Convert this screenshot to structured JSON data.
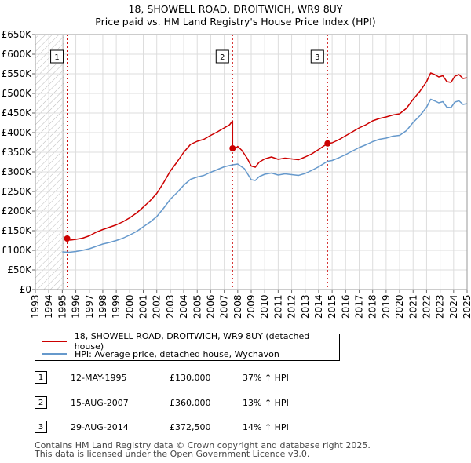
{
  "title": "18, SHOWELL ROAD, DROITWICH, WR9 8UY",
  "subtitle": "Price paid vs. HM Land Registry's House Price Index (HPI)",
  "colors": {
    "property": "#cc0000",
    "hpi": "#6699cc",
    "marker_line": "#cc0000",
    "hatch": "#bbbbbb",
    "grid": "#dddddd"
  },
  "chart_data": {
    "type": "line",
    "title": "18, SHOWELL ROAD, DROITWICH, WR9 8UY",
    "subtitle": "Price paid vs. HM Land Registry's House Price Index (HPI)",
    "xlabel": "",
    "ylabel": "",
    "xlim": [
      1993,
      2025
    ],
    "ylim": [
      0,
      650000
    ],
    "grid": true,
    "x_ticks": [
      1993,
      1994,
      1995,
      1996,
      1997,
      1998,
      1999,
      2000,
      2001,
      2002,
      2003,
      2004,
      2005,
      2006,
      2007,
      2008,
      2009,
      2010,
      2011,
      2012,
      2013,
      2014,
      2015,
      2016,
      2017,
      2018,
      2019,
      2020,
      2021,
      2022,
      2023,
      2024,
      2025
    ],
    "y_ticks": [
      0,
      50000,
      100000,
      150000,
      200000,
      250000,
      300000,
      350000,
      400000,
      450000,
      500000,
      550000,
      600000,
      650000
    ],
    "y_tick_labels": [
      "£0",
      "£50K",
      "£100K",
      "£150K",
      "£200K",
      "£250K",
      "£300K",
      "£350K",
      "£400K",
      "£450K",
      "£500K",
      "£550K",
      "£600K",
      "£650K"
    ],
    "hatched_range": [
      1993,
      1995.1
    ],
    "series": [
      {
        "name": "18, SHOWELL ROAD, DROITWICH, WR9 8UY (detached house)",
        "color": "#cc0000",
        "points": [
          [
            1995.36,
            130000
          ],
          [
            1995.6,
            126000
          ],
          [
            1996.0,
            128000
          ],
          [
            1996.5,
            131000
          ],
          [
            1997.0,
            137000
          ],
          [
            1997.5,
            146000
          ],
          [
            1998.0,
            153000
          ],
          [
            1998.5,
            159000
          ],
          [
            1999.0,
            165000
          ],
          [
            1999.5,
            173000
          ],
          [
            2000.0,
            183000
          ],
          [
            2000.5,
            195000
          ],
          [
            2001.0,
            210000
          ],
          [
            2001.5,
            226000
          ],
          [
            2002.0,
            245000
          ],
          [
            2002.5,
            272000
          ],
          [
            2003.0,
            302000
          ],
          [
            2003.5,
            325000
          ],
          [
            2004.0,
            350000
          ],
          [
            2004.5,
            370000
          ],
          [
            2005.0,
            378000
          ],
          [
            2005.5,
            383000
          ],
          [
            2006.0,
            393000
          ],
          [
            2006.5,
            402000
          ],
          [
            2007.0,
            412000
          ],
          [
            2007.4,
            420000
          ],
          [
            2007.62,
            430000
          ],
          [
            2007.62,
            360000
          ],
          [
            2007.8,
            358000
          ],
          [
            2008.0,
            365000
          ],
          [
            2008.3,
            355000
          ],
          [
            2008.7,
            335000
          ],
          [
            2009.0,
            315000
          ],
          [
            2009.3,
            312000
          ],
          [
            2009.6,
            325000
          ],
          [
            2010.0,
            333000
          ],
          [
            2010.5,
            338000
          ],
          [
            2011.0,
            332000
          ],
          [
            2011.5,
            335000
          ],
          [
            2012.0,
            333000
          ],
          [
            2012.5,
            331000
          ],
          [
            2013.0,
            338000
          ],
          [
            2013.5,
            346000
          ],
          [
            2014.0,
            357000
          ],
          [
            2014.66,
            372500
          ],
          [
            2015.0,
            374000
          ],
          [
            2015.5,
            382000
          ],
          [
            2016.0,
            392000
          ],
          [
            2016.5,
            402000
          ],
          [
            2017.0,
            412000
          ],
          [
            2017.5,
            420000
          ],
          [
            2018.0,
            430000
          ],
          [
            2018.5,
            436000
          ],
          [
            2019.0,
            440000
          ],
          [
            2019.5,
            445000
          ],
          [
            2020.0,
            448000
          ],
          [
            2020.5,
            462000
          ],
          [
            2021.0,
            485000
          ],
          [
            2021.5,
            505000
          ],
          [
            2022.0,
            530000
          ],
          [
            2022.3,
            552000
          ],
          [
            2022.6,
            548000
          ],
          [
            2022.9,
            542000
          ],
          [
            2023.2,
            545000
          ],
          [
            2023.5,
            530000
          ],
          [
            2023.8,
            528000
          ],
          [
            2024.1,
            544000
          ],
          [
            2024.4,
            548000
          ],
          [
            2024.7,
            538000
          ],
          [
            2025.0,
            540000
          ]
        ]
      },
      {
        "name": "HPI: Average price, detached house, Wychavon",
        "color": "#6699cc",
        "points": [
          [
            1995.0,
            96000
          ],
          [
            1995.5,
            95000
          ],
          [
            1996.0,
            97000
          ],
          [
            1996.5,
            100000
          ],
          [
            1997.0,
            104000
          ],
          [
            1997.5,
            110000
          ],
          [
            1998.0,
            116000
          ],
          [
            1998.5,
            120000
          ],
          [
            1999.0,
            125000
          ],
          [
            1999.5,
            131000
          ],
          [
            2000.0,
            139000
          ],
          [
            2000.5,
            148000
          ],
          [
            2001.0,
            160000
          ],
          [
            2001.5,
            172000
          ],
          [
            2002.0,
            186000
          ],
          [
            2002.5,
            207000
          ],
          [
            2003.0,
            230000
          ],
          [
            2003.5,
            247000
          ],
          [
            2004.0,
            266000
          ],
          [
            2004.5,
            281000
          ],
          [
            2005.0,
            287000
          ],
          [
            2005.5,
            291000
          ],
          [
            2006.0,
            299000
          ],
          [
            2006.5,
            306000
          ],
          [
            2007.0,
            313000
          ],
          [
            2007.62,
            318000
          ],
          [
            2008.0,
            320000
          ],
          [
            2008.5,
            308000
          ],
          [
            2009.0,
            280000
          ],
          [
            2009.3,
            278000
          ],
          [
            2009.6,
            288000
          ],
          [
            2010.0,
            294000
          ],
          [
            2010.5,
            297000
          ],
          [
            2011.0,
            292000
          ],
          [
            2011.5,
            295000
          ],
          [
            2012.0,
            293000
          ],
          [
            2012.5,
            291000
          ],
          [
            2013.0,
            296000
          ],
          [
            2013.5,
            304000
          ],
          [
            2014.0,
            313000
          ],
          [
            2014.66,
            327000
          ],
          [
            2015.0,
            329000
          ],
          [
            2015.5,
            336000
          ],
          [
            2016.0,
            344000
          ],
          [
            2016.5,
            353000
          ],
          [
            2017.0,
            362000
          ],
          [
            2017.5,
            369000
          ],
          [
            2018.0,
            377000
          ],
          [
            2018.5,
            383000
          ],
          [
            2019.0,
            386000
          ],
          [
            2019.5,
            391000
          ],
          [
            2020.0,
            393000
          ],
          [
            2020.5,
            405000
          ],
          [
            2021.0,
            426000
          ],
          [
            2021.5,
            443000
          ],
          [
            2022.0,
            465000
          ],
          [
            2022.3,
            485000
          ],
          [
            2022.6,
            481000
          ],
          [
            2022.9,
            476000
          ],
          [
            2023.2,
            479000
          ],
          [
            2023.5,
            465000
          ],
          [
            2023.8,
            464000
          ],
          [
            2024.1,
            478000
          ],
          [
            2024.4,
            481000
          ],
          [
            2024.7,
            472000
          ],
          [
            2025.0,
            474000
          ]
        ]
      }
    ],
    "sale_markers": [
      {
        "label": "1",
        "x": 1995.36,
        "y": 130000
      },
      {
        "label": "2",
        "x": 2007.62,
        "y": 360000
      },
      {
        "label": "3",
        "x": 2014.66,
        "y": 372500
      }
    ]
  },
  "legend": {
    "property_label": "18, SHOWELL ROAD, DROITWICH, WR9 8UY (detached house)",
    "hpi_label": "HPI: Average price, detached house, Wychavon"
  },
  "sales": [
    {
      "num": "1",
      "date": "12-MAY-1995",
      "price": "£130,000",
      "hpi": "37% ↑ HPI"
    },
    {
      "num": "2",
      "date": "15-AUG-2007",
      "price": "£360,000",
      "hpi": "13% ↑ HPI"
    },
    {
      "num": "3",
      "date": "29-AUG-2014",
      "price": "£372,500",
      "hpi": "14% ↑ HPI"
    }
  ],
  "footer": {
    "line1": "Contains HM Land Registry data © Crown copyright and database right 2025.",
    "line2": "This data is licensed under the Open Government Licence v3.0."
  }
}
